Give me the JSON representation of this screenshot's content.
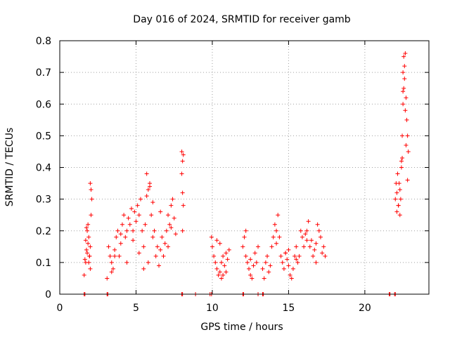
{
  "chart_data": {
    "type": "scatter",
    "title": "Day 016 of 2024, SRMTID for receiver gamb",
    "xlabel": "GPS time / hours",
    "ylabel": "SRMTID / TECUs",
    "xlim": [
      0,
      24.2
    ],
    "ylim": [
      0,
      0.8
    ],
    "xticks": [
      0,
      5,
      10,
      15,
      20
    ],
    "xtick_labels": [
      "0",
      "5",
      "10",
      "15",
      "20"
    ],
    "yticks": [
      0,
      0.1,
      0.2,
      0.3,
      0.4,
      0.5,
      0.6,
      0.7,
      0.8
    ],
    "ytick_labels": [
      "0",
      "0.1",
      "0.2",
      "0.3",
      "0.4",
      "0.5",
      "0.6",
      "0.7",
      "0.8"
    ],
    "grid": true,
    "marker": "+",
    "color": "#ff0000",
    "series": [
      {
        "name": "SRMTID",
        "x": [
          1.6,
          1.7,
          1.75,
          1.8,
          1.85,
          1.9,
          1.95,
          2.0,
          2.05,
          2.1,
          2.0,
          2.05,
          2.0,
          1.9,
          1.8,
          1.7,
          1.65,
          1.75,
          1.85,
          1.95,
          3.1,
          3.2,
          3.3,
          3.4,
          3.5,
          3.6,
          3.7,
          3.8,
          3.9,
          4.0,
          4.1,
          4.2,
          4.3,
          4.4,
          4.5,
          4.6,
          4.7,
          4.8,
          4.9,
          5.0,
          5.1,
          5.2,
          5.3,
          5.4,
          5.5,
          5.6,
          5.7,
          5.8,
          5.9,
          6.0,
          6.1,
          6.2,
          6.3,
          6.4,
          6.5,
          6.6,
          6.7,
          6.8,
          6.9,
          7.0,
          7.1,
          7.2,
          7.3,
          7.4,
          7.5,
          7.6,
          5.7,
          5.9,
          6.1,
          5.8,
          5.5,
          5.2,
          4.8,
          4.4,
          4.0,
          3.6,
          3.4,
          6.6,
          7.3,
          7.1,
          8.0,
          8.05,
          8.1,
          8.0,
          8.05,
          8.1,
          8.05,
          9.95,
          10.0,
          10.1,
          10.2,
          10.3,
          10.4,
          10.5,
          10.6,
          10.7,
          10.8,
          10.9,
          11.0,
          11.1,
          10.5,
          10.7,
          10.9,
          10.3,
          10.6,
          12.0,
          12.1,
          12.2,
          12.3,
          12.4,
          12.5,
          12.6,
          12.7,
          12.8,
          12.9,
          13.0,
          12.2,
          12.5,
          13.3,
          13.4,
          13.5,
          13.6,
          13.7,
          13.8,
          13.9,
          14.0,
          14.1,
          14.2,
          14.3,
          14.4,
          14.5,
          14.6,
          14.7,
          14.8,
          14.9,
          15.0,
          15.1,
          15.2,
          15.3,
          15.4,
          15.5,
          15.6,
          15.7,
          15.8,
          15.9,
          16.0,
          16.1,
          16.2,
          16.3,
          16.4,
          16.5,
          16.6,
          16.7,
          16.8,
          16.9,
          17.0,
          17.1,
          17.2,
          17.3,
          17.4,
          15.0,
          14.2,
          16.2,
          14.8,
          15.5,
          16.8,
          22.0,
          22.05,
          22.1,
          22.15,
          22.2,
          22.25,
          22.3,
          22.35,
          22.4,
          22.45,
          22.5,
          22.55,
          22.6,
          22.65,
          22.7,
          22.75,
          22.8,
          22.85,
          22.5,
          22.55,
          22.6,
          22.4,
          22.45,
          22.3,
          22.2,
          22.7,
          22.65,
          22.5,
          22.8,
          22.1
        ],
        "y": [
          0.06,
          0.1,
          0.14,
          0.2,
          0.22,
          0.18,
          0.12,
          0.15,
          0.25,
          0.3,
          0.35,
          0.33,
          0.08,
          0.1,
          0.13,
          0.17,
          0.11,
          0.21,
          0.16,
          0.12,
          0.05,
          0.15,
          0.12,
          0.1,
          0.08,
          0.14,
          0.18,
          0.2,
          0.12,
          0.16,
          0.22,
          0.25,
          0.18,
          0.2,
          0.24,
          0.22,
          0.27,
          0.2,
          0.26,
          0.23,
          0.28,
          0.25,
          0.3,
          0.2,
          0.15,
          0.22,
          0.38,
          0.33,
          0.35,
          0.25,
          0.18,
          0.2,
          0.12,
          0.15,
          0.09,
          0.14,
          0.18,
          0.12,
          0.16,
          0.2,
          0.25,
          0.22,
          0.28,
          0.3,
          0.24,
          0.19,
          0.31,
          0.34,
          0.29,
          0.1,
          0.08,
          0.13,
          0.17,
          0.1,
          0.19,
          0.12,
          0.07,
          0.26,
          0.21,
          0.15,
          0.45,
          0.42,
          0.44,
          0.38,
          0.32,
          0.28,
          0.2,
          0.18,
          0.15,
          0.12,
          0.1,
          0.08,
          0.06,
          0.07,
          0.1,
          0.12,
          0.09,
          0.07,
          0.11,
          0.14,
          0.16,
          0.06,
          0.13,
          0.17,
          0.05,
          0.15,
          0.18,
          0.12,
          0.1,
          0.08,
          0.06,
          0.05,
          0.09,
          0.13,
          0.1,
          0.15,
          0.2,
          0.11,
          0.08,
          0.05,
          0.1,
          0.12,
          0.07,
          0.09,
          0.15,
          0.18,
          0.22,
          0.2,
          0.25,
          0.18,
          0.12,
          0.1,
          0.08,
          0.13,
          0.11,
          0.09,
          0.06,
          0.05,
          0.08,
          0.12,
          0.15,
          0.1,
          0.12,
          0.2,
          0.18,
          0.15,
          0.19,
          0.2,
          0.23,
          0.15,
          0.17,
          0.12,
          0.14,
          0.16,
          0.22,
          0.2,
          0.18,
          0.13,
          0.15,
          0.12,
          0.14,
          0.16,
          0.17,
          0.13,
          0.11,
          0.1,
          0.3,
          0.35,
          0.32,
          0.38,
          0.28,
          0.35,
          0.25,
          0.3,
          0.42,
          0.5,
          0.6,
          0.65,
          0.72,
          0.76,
          0.62,
          0.55,
          0.5,
          0.45,
          0.7,
          0.75,
          0.68,
          0.4,
          0.43,
          0.33,
          0.28,
          0.47,
          0.58,
          0.64,
          0.36,
          0.26
        ],
        "zero_x": [
          1.6,
          1.65,
          3.1,
          3.15,
          8.0,
          8.05,
          8.9,
          9.85,
          9.95,
          12.0,
          12.05,
          13.0,
          13.3,
          13.35,
          21.6,
          21.65,
          21.95,
          22.0
        ]
      }
    ]
  }
}
